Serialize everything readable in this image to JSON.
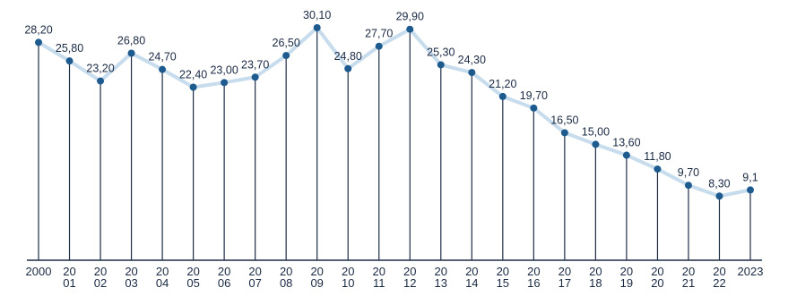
{
  "chart_data": {
    "type": "line",
    "title": "",
    "xlabel": "",
    "ylabel": "",
    "ylim": [
      0,
      30.1
    ],
    "grid": false,
    "colors": {
      "line": "#c7dced",
      "marker": "#1d5b8f",
      "stem": "#1f2d46",
      "axis": "#1f2d46",
      "text": "#1a2a44"
    },
    "tick_labels": [
      [
        "2000"
      ],
      [
        "20",
        "01"
      ],
      [
        "20",
        "02"
      ],
      [
        "20",
        "03"
      ],
      [
        "20",
        "04"
      ],
      [
        "20",
        "05"
      ],
      [
        "20",
        "06"
      ],
      [
        "20",
        "07"
      ],
      [
        "20",
        "08"
      ],
      [
        "20",
        "09"
      ],
      [
        "20",
        "10"
      ],
      [
        "20",
        "11"
      ],
      [
        "20",
        "12"
      ],
      [
        "20",
        "13"
      ],
      [
        "20",
        "14"
      ],
      [
        "20",
        "15"
      ],
      [
        "20",
        "16"
      ],
      [
        "20",
        "17"
      ],
      [
        "20",
        "18"
      ],
      [
        "20",
        "19"
      ],
      [
        "20",
        "20"
      ],
      [
        "20",
        "21"
      ],
      [
        "20",
        "22"
      ],
      [
        "2023"
      ]
    ],
    "value_labels": [
      "28,20",
      "25,80",
      "23,20",
      "26,80",
      "24,70",
      "22,40",
      "23,00",
      "23,70",
      "26,50",
      "30,10",
      "24,80",
      "27,70",
      "29,90",
      "25,30",
      "24,30",
      "21,20",
      "19,70",
      "16,50",
      "15,00",
      "13,60",
      "11,80",
      "9,70",
      "8,30",
      "9,1"
    ],
    "values": [
      28.2,
      25.8,
      23.2,
      26.8,
      24.7,
      22.4,
      23.0,
      23.7,
      26.5,
      30.1,
      24.8,
      27.7,
      29.9,
      25.3,
      24.3,
      21.2,
      19.7,
      16.5,
      15.0,
      13.6,
      11.8,
      9.7,
      8.3,
      9.1
    ]
  }
}
